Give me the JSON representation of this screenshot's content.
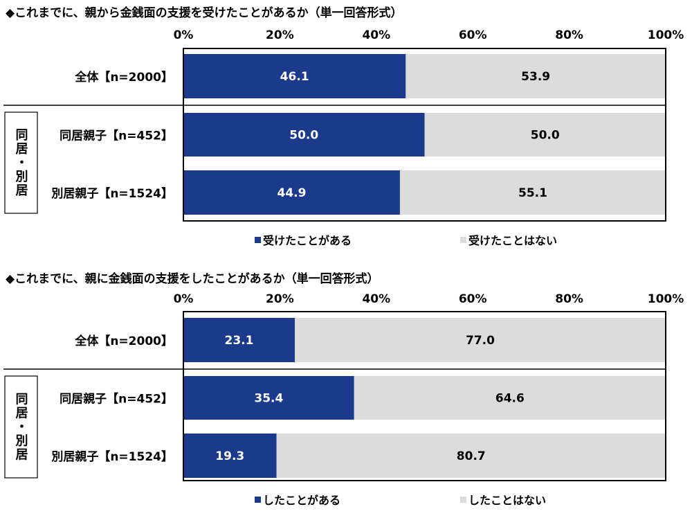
{
  "colors": {
    "yes": "#1c3a8c",
    "no": "#dcdcdc",
    "frame": "#000000"
  },
  "chart_data": [
    {
      "type": "bar",
      "orientation": "horizontal-stacked-100",
      "title": "◆これまでに、親から金銭面の支援を受けたことがあるか（単一回答形式）",
      "xlim": [
        0,
        100
      ],
      "xticks": [
        "0%",
        "20%",
        "40%",
        "60%",
        "80%",
        "100%"
      ],
      "categories": [
        "全体【n=2000】",
        "同居親子【n=452】",
        "別居親子【n=1524】"
      ],
      "group_label": "同居・別居",
      "series": [
        {
          "name": "受けたことがある",
          "values": [
            46.1,
            50.0,
            44.9
          ]
        },
        {
          "name": "受けたことはない",
          "values": [
            53.9,
            50.0,
            55.1
          ]
        }
      ],
      "legend": "bottom",
      "grid": false
    },
    {
      "type": "bar",
      "orientation": "horizontal-stacked-100",
      "title": "◆これまでに、親に金銭面の支援をしたことがあるか（単一回答形式）",
      "xlim": [
        0,
        100
      ],
      "xticks": [
        "0%",
        "20%",
        "40%",
        "60%",
        "80%",
        "100%"
      ],
      "categories": [
        "全体【n=2000】",
        "同居親子【n=452】",
        "別居親子【n=1524】"
      ],
      "group_label": "同居・別居",
      "series": [
        {
          "name": "したことがある",
          "values": [
            23.1,
            35.4,
            19.3
          ]
        },
        {
          "name": "したことはない",
          "values": [
            77.0,
            64.6,
            80.7
          ]
        }
      ],
      "legend": "bottom",
      "grid": false
    }
  ]
}
